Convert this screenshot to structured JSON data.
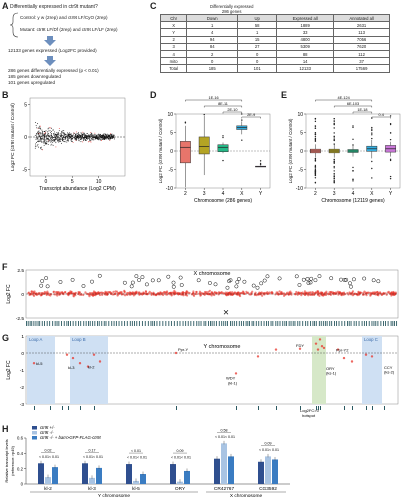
{
  "panels": {
    "A": {
      "letter": "A",
      "question": "Differentially expressed in ctr9t mutant?",
      "control": "Control: y w (2rep) and ctr9t LF/CyO (2rep)",
      "mutant": "Mutant: ctr9t LF/Df (2rep) and ctr9t LF/LF (2rep)",
      "genes_line": "12133 genes expressed (Log2FC provided)",
      "summary": [
        "286 genes differentially expressed (p < 0.01)",
        "185 genes downregulated",
        "101 genes upregulated"
      ]
    },
    "B": {
      "letter": "B",
      "ylabel": "Log2 FC (ctr9t mutant / Control)",
      "xlabel": "Transcript abundance (Log2 CPM)"
    },
    "C": {
      "letter": "C",
      "header_group": "Differentially expressed",
      "header_sub": "286 genes",
      "columns": [
        "Chr",
        "Down",
        "Up",
        "Expressed all",
        "Annotated all"
      ],
      "rows": [
        [
          "X",
          "1",
          "58",
          "1889",
          "2631"
        ],
        [
          "Y",
          "4",
          "1",
          "33",
          "113"
        ],
        [
          "2",
          "94",
          "15",
          "4800",
          "7056"
        ],
        [
          "3",
          "84",
          "27",
          "5309",
          "7620"
        ],
        [
          "4",
          "2",
          "0",
          "88",
          "112"
        ],
        [
          "mito",
          "0",
          "0",
          "14",
          "37"
        ],
        [
          "Total",
          "185",
          "101",
          "12133",
          "17569"
        ]
      ]
    },
    "D": {
      "letter": "D",
      "ylabel": "Log2 FC (ctr9t mutant / Control)",
      "xlabel": "Chromosome (286 genes)",
      "pvalues": [
        "1E-16",
        "8E-11",
        "2E-10",
        "2E-9"
      ]
    },
    "E": {
      "letter": "E",
      "ylabel": "Log2 FC (ctr9t mutant / Control)",
      "xlabel": "Chromosome (12119 genes)",
      "pvalues": [
        "4E-124",
        "6E-103",
        "1E-18",
        "0.4"
      ]
    },
    "F": {
      "letter": "F",
      "title": "X chromosome",
      "ylabel": "Log2 FC"
    },
    "G": {
      "letter": "G",
      "title": "Y chromosome",
      "ylabel": "Log2 FC",
      "loops": [
        "Loop A",
        "Loop B",
        "Loop C"
      ],
      "genes": [
        "kl-5",
        "kl-3",
        "kl-2",
        "Ppr-Y",
        "WDY",
        "(kl-1)",
        "FDY",
        "ORY",
        "(ks-1)",
        "Ppr-Y2",
        "CCY",
        "(ks-2)"
      ],
      "hotspot": [
        "Log2FC>0",
        "hotspot"
      ]
    },
    "H": {
      "letter": "H",
      "ylabel": [
        "Relative transcript levels",
        "(reference: rp49)"
      ],
      "legend": [
        "ctr9t +/-",
        "ctr9t -/-",
        "ctr9t -/- + bam>GFP-FLAG-ctr9t"
      ],
      "groups_y": "Y chromosome",
      "groups_x": "X chromosome"
    }
  },
  "chart_data": [
    {
      "type": "scatter",
      "panel": "B",
      "xlabel": "Transcript abundance (Log2 CPM)",
      "ylabel": "Log2 FC (ctr9t mutant / Control)",
      "xlim": [
        -3,
        15
      ],
      "ylim": [
        -6,
        6
      ],
      "xticks": [
        0,
        5,
        10
      ],
      "yticks": [
        -5,
        0,
        5
      ]
    },
    {
      "type": "box",
      "panel": "D",
      "xlabel": "Chromosome (286 genes)",
      "ylabel": "Log2 FC (ctr9t mutant / Control)",
      "categories": [
        "2",
        "3",
        "4",
        "X",
        "Y"
      ],
      "colors": [
        "#e8756b",
        "#b4a424",
        "#25b887",
        "#33aee0",
        "#c977d8"
      ],
      "ylim": [
        -10,
        10
      ],
      "yticks": [
        -10,
        -5,
        0,
        5,
        10
      ],
      "boxes": [
        {
          "q1": -3.2,
          "median": 1.0,
          "q3": 2.6,
          "min": -9.8,
          "max": 6.8
        },
        {
          "q1": -0.8,
          "median": 1.2,
          "q3": 3.8,
          "min": -6.5,
          "max": 9.5
        },
        {
          "q1": -0.2,
          "median": 1.0,
          "q3": 1.7,
          "min": -0.6,
          "max": 2.3
        },
        {
          "q1": 5.8,
          "median": 6.3,
          "q3": 6.8,
          "min": 4.5,
          "max": 8.0
        },
        {
          "q1": -4.3,
          "median": -4.2,
          "q3": -4.1,
          "min": -4.3,
          "max": -4.1
        }
      ],
      "pvalues": [
        "1E-16",
        "8E-11",
        "2E-10",
        "2E-9"
      ]
    },
    {
      "type": "box",
      "panel": "E",
      "xlabel": "Chromosome (12119 genes)",
      "ylabel": "Log2 FC (ctr9t mutant / Control)",
      "categories": [
        "2",
        "3",
        "4",
        "X",
        "Y"
      ],
      "colors": [
        "#e8756b",
        "#b4a424",
        "#25b887",
        "#33aee0",
        "#c977d8"
      ],
      "ylim": [
        -10,
        10
      ],
      "yticks": [
        -10,
        -5,
        0,
        5,
        10
      ],
      "boxes": [
        {
          "q1": -0.5,
          "median": 0.0,
          "q3": 0.5,
          "min": -1.8,
          "max": 1.8
        },
        {
          "q1": -0.5,
          "median": 0.0,
          "q3": 0.5,
          "min": -1.8,
          "max": 1.8
        },
        {
          "q1": -0.4,
          "median": 0.0,
          "q3": 0.4,
          "min": -1.5,
          "max": 1.5
        },
        {
          "q1": -0.1,
          "median": 0.6,
          "q3": 1.3,
          "min": -2.0,
          "max": 3.0
        },
        {
          "q1": -0.3,
          "median": 0.6,
          "q3": 1.5,
          "min": -1.5,
          "max": 2.5
        }
      ],
      "pvalues": [
        "4E-124",
        "6E-103",
        "1E-18",
        "0.4"
      ]
    },
    {
      "type": "scatter",
      "panel": "F",
      "title": "X chromosome",
      "ylabel": "Log2 FC",
      "ylim": [
        -2.5,
        2.5
      ],
      "yticks": [
        2.5,
        0,
        -2.5
      ]
    },
    {
      "type": "scatter",
      "panel": "G",
      "title": "Y chromosome",
      "ylabel": "Log2 FC",
      "ylim": [
        -3,
        1
      ],
      "yticks": [
        1,
        0,
        -1,
        -2,
        -3
      ]
    },
    {
      "type": "bar",
      "panel": "H",
      "ylabel": "Relative transcript levels (reference: rp49)",
      "categories": [
        "kl-2",
        "kl-3",
        "kl-5",
        "ORY",
        "CR42767",
        "CG3592"
      ],
      "ylim": [
        0,
        0.6
      ],
      "yticks": [
        0,
        0.2,
        0.4,
        0.6
      ],
      "series": [
        {
          "name": "ctr9t +/-",
          "color": "#2f4f8f",
          "values": [
            0.27,
            0.27,
            0.26,
            0.26,
            0.33,
            0.29
          ]
        },
        {
          "name": "ctr9t -/-",
          "color": "#a9c4e3",
          "values": [
            0.09,
            0.08,
            0.04,
            0.03,
            0.53,
            0.36
          ]
        },
        {
          "name": "ctr9t -/- + bam>GFP-FLAG-ctr9t",
          "color": "#3a7cc2",
          "values": [
            0.22,
            0.21,
            0.13,
            0.17,
            0.36,
            0.32
          ]
        }
      ],
      "significance": [
        [
          "0.02",
          "< 0.01",
          "< 0.01"
        ],
        [
          "0.17",
          "< 0.01",
          "< 0.01"
        ],
        [
          "< 0.01",
          "< 0.01",
          "< 0.01"
        ],
        [
          "0.09",
          "< 0.01",
          "< 0.01"
        ],
        [
          "0.58",
          "< 0.01",
          "< 0.01"
        ],
        [
          "0.09",
          "< 0.01",
          "< 0.01"
        ]
      ]
    }
  ]
}
